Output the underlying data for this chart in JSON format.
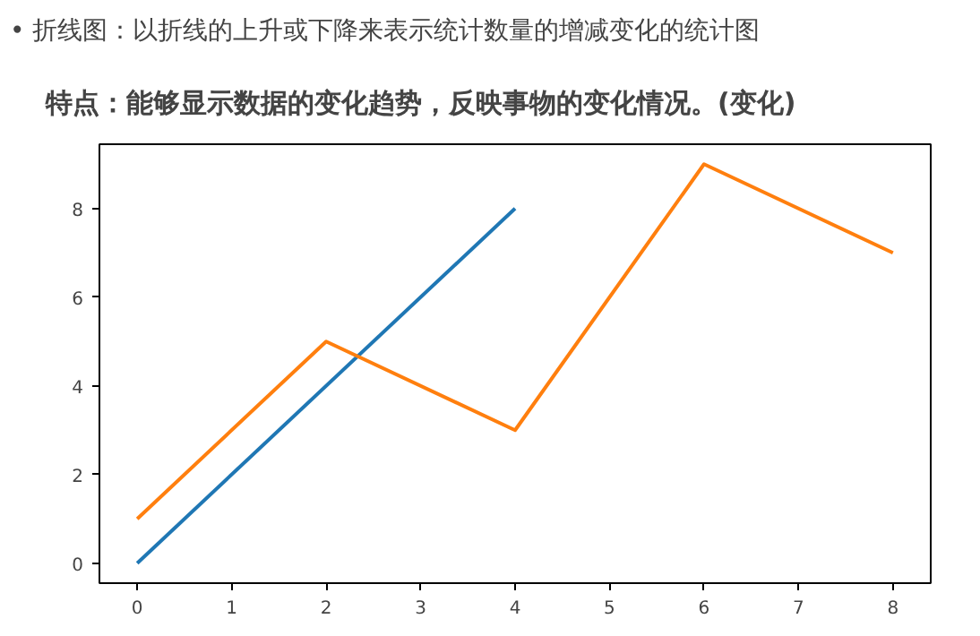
{
  "chart_data": {
    "type": "line",
    "title": "• 折线图：以折线的上升或下降来表示统计数量的增减变化的统计图",
    "subtitle": "特点：能够显示数据的变化趋势，反映事物的变化情况。(变化)",
    "series": [
      {
        "color": "#1f77b4",
        "x": [
          0,
          4
        ],
        "values": [
          0,
          8
        ]
      },
      {
        "color": "#ff7f0e",
        "x": [
          0,
          2,
          4,
          6,
          8
        ],
        "values": [
          1,
          5,
          3,
          9,
          7
        ]
      }
    ],
    "xlim": [
      -0.4,
      8.4
    ],
    "ylim": [
      -0.45,
      9.45
    ],
    "xticks": [
      0,
      1,
      2,
      3,
      4,
      5,
      6,
      7,
      8
    ],
    "yticks": [
      0,
      2,
      4,
      6,
      8
    ],
    "grid": false
  }
}
